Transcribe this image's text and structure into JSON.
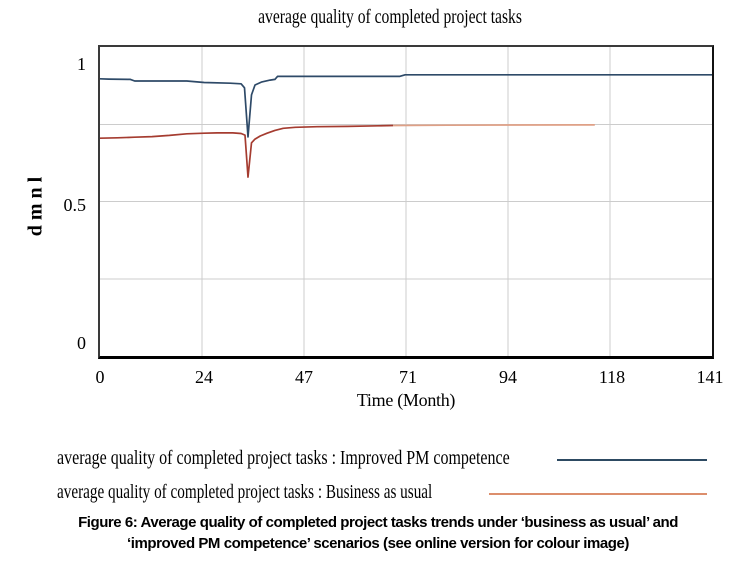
{
  "title": "average quality of completed project tasks",
  "y_axis": {
    "label": "dmnl",
    "ticks": [
      "1",
      "0.5",
      "0"
    ]
  },
  "x_axis": {
    "label": "Time (Month)",
    "ticks": [
      "0",
      "24",
      "47",
      "71",
      "94",
      "118",
      "141"
    ]
  },
  "legend": {
    "rows": [
      {
        "label": "average quality of completed project tasks : Improved PM competence",
        "color": "#2d4a62"
      },
      {
        "label": "average quality of completed project tasks : Business as usual",
        "color": "#dc8e6c"
      }
    ]
  },
  "caption": {
    "line1": "Figure 6: Average quality of completed project tasks trends under ‘business as usual’ and",
    "line2": "‘improved PM competence’ scenarios (see online version for colour image)"
  },
  "chart_data": {
    "type": "line",
    "title": "average quality of completed project tasks",
    "xlabel": "Time (Month)",
    "ylabel": "dmnl",
    "xlim": [
      0,
      141
    ],
    "ylim": [
      0,
      1
    ],
    "x_tick_values": [
      0,
      24,
      47,
      71,
      94,
      118,
      141
    ],
    "y_tick_values": [
      0,
      0.5,
      1
    ],
    "grid": true,
    "grid_x_months": [
      23.5,
      47,
      70.5,
      94,
      117.5
    ],
    "grid_y_values": [
      0.25,
      0.5,
      0.75
    ],
    "gridline_color": "#cccccc",
    "legend_position": "below",
    "series": [
      {
        "name": "average quality of completed project tasks : Improved PM competence",
        "key": "improved-pm-competence",
        "segments": [
          {
            "x0": 0,
            "x1": 141,
            "color": "#2e4a68"
          }
        ],
        "points": [
          [
            0,
            0.897
          ],
          [
            2,
            0.896
          ],
          [
            7,
            0.895
          ],
          [
            8,
            0.89
          ],
          [
            20,
            0.89
          ],
          [
            24,
            0.885
          ],
          [
            30,
            0.883
          ],
          [
            32.5,
            0.881
          ],
          [
            33.3,
            0.868
          ],
          [
            34.1,
            0.709
          ],
          [
            34.9,
            0.845
          ],
          [
            35.7,
            0.877
          ],
          [
            37.3,
            0.887
          ],
          [
            39.2,
            0.893
          ],
          [
            40.3,
            0.895
          ],
          [
            40.9,
            0.905
          ],
          [
            55,
            0.905
          ],
          [
            69,
            0.905
          ],
          [
            70.3,
            0.91
          ],
          [
            100,
            0.91
          ],
          [
            141,
            0.91
          ]
        ]
      },
      {
        "name": "average quality of completed project tasks : Business as usual",
        "key": "business-as-usual",
        "segments": [
          {
            "x0": 0,
            "x1": 67.5,
            "color": "#a53c30"
          },
          {
            "x0": 67.5,
            "x1": 114,
            "color": "#dfa086"
          }
        ],
        "points": [
          [
            0,
            0.705
          ],
          [
            4,
            0.706
          ],
          [
            8,
            0.708
          ],
          [
            12,
            0.71
          ],
          [
            16,
            0.714
          ],
          [
            20,
            0.719
          ],
          [
            24,
            0.721
          ],
          [
            27,
            0.722
          ],
          [
            30.6,
            0.722
          ],
          [
            32.5,
            0.72
          ],
          [
            33.4,
            0.715
          ],
          [
            34.1,
            0.579
          ],
          [
            34.9,
            0.69
          ],
          [
            35.7,
            0.702
          ],
          [
            36.9,
            0.712
          ],
          [
            38.5,
            0.721
          ],
          [
            40.3,
            0.73
          ],
          [
            42.2,
            0.737
          ],
          [
            45,
            0.74
          ],
          [
            50,
            0.742
          ],
          [
            57,
            0.743
          ],
          [
            64,
            0.745
          ],
          [
            67.5,
            0.746
          ],
          [
            80,
            0.747
          ],
          [
            95,
            0.7475
          ],
          [
            114,
            0.748
          ]
        ]
      }
    ]
  }
}
